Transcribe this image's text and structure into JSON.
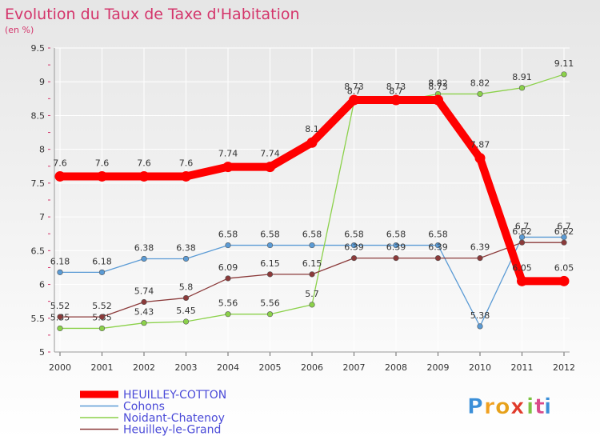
{
  "chart_data": {
    "type": "line",
    "title": "Evolution du Taux de Taxe d'Habitation",
    "subtitle": "(en %)",
    "x": [
      "2000",
      "2001",
      "2002",
      "2003",
      "2004",
      "2005",
      "2006",
      "2007",
      "2008",
      "2009",
      "2010",
      "2011",
      "2012"
    ],
    "ylim": [
      5,
      9.5
    ],
    "yticks": [
      "5",
      "5.5",
      "6",
      "6.5",
      "7",
      "7.5",
      "8",
      "8.5",
      "9",
      "9.5"
    ],
    "grid": true,
    "legend_position": "bottom-left",
    "series": [
      {
        "name": "HEUILLEY-COTTON",
        "color": "#ff0000",
        "values": [
          7.6,
          7.6,
          7.6,
          7.6,
          7.74,
          7.74,
          8.1,
          8.73,
          8.73,
          8.73,
          7.87,
          6.05,
          6.05
        ],
        "labels": [
          "7.6",
          "7.6",
          "7.6",
          "7.6",
          "7.74",
          "7.74",
          "8.1",
          "8.73",
          "8.73",
          "8.73",
          "7.87",
          "6.05",
          "6.05"
        ]
      },
      {
        "name": "Cohons",
        "color": "#5b9bd5",
        "values": [
          6.18,
          6.18,
          6.38,
          6.38,
          6.58,
          6.58,
          6.58,
          6.58,
          6.58,
          6.58,
          5.38,
          6.7,
          6.7
        ],
        "labels": [
          "6.18",
          "6.18",
          "6.38",
          "6.38",
          "6.58",
          "6.58",
          "6.58",
          "6.58",
          "6.58",
          "6.58",
          "5.38",
          "6.7",
          "6.7"
        ]
      },
      {
        "name": "Noidant-Chatenoy",
        "color": "#8bd14a",
        "values": [
          5.35,
          5.35,
          5.43,
          5.45,
          5.56,
          5.56,
          5.7,
          8.7,
          8.7,
          8.82,
          8.82,
          8.91,
          9.11
        ],
        "labels": [
          "5.35",
          "5.35",
          "5.43",
          "5.45",
          "5.56",
          "5.56",
          "5.7",
          "8.7",
          "8.7",
          "8.82",
          "8.82",
          "8.91",
          "9.11"
        ]
      },
      {
        "name": "Heuilley-le-Grand",
        "color": "#8b3a3a",
        "values": [
          5.52,
          5.52,
          5.74,
          5.8,
          6.09,
          6.15,
          6.15,
          6.39,
          6.39,
          6.39,
          6.39,
          6.62,
          6.62
        ],
        "labels": [
          "5.52",
          "5.52",
          "5.74",
          "5.8",
          "6.09",
          "6.15",
          "6.15",
          "6.39",
          "6.39",
          "6.39",
          "6.39",
          "6.62",
          "6.62"
        ]
      }
    ]
  },
  "logo_text": "Proxiti"
}
